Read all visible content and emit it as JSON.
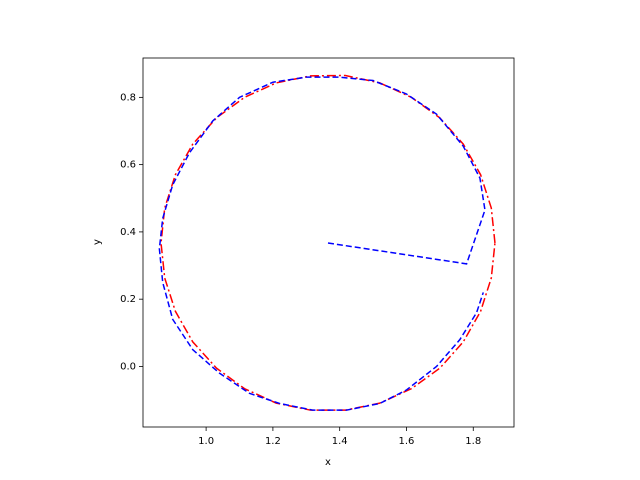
{
  "chart_data": {
    "type": "line",
    "xlabel": "x",
    "ylabel": "y",
    "xlim": [
      0.811,
      1.922
    ],
    "ylim": [
      -0.18,
      0.917
    ],
    "xticks": [
      {
        "value": 1.0,
        "label": "1.0"
      },
      1.2,
      1.4,
      1.6,
      1.8
    ],
    "yticks": [
      {
        "value": 0.0,
        "label": "0.0"
      },
      0.2,
      0.4,
      0.6,
      0.8
    ],
    "series": [
      {
        "color": "#ff0000",
        "linestyle": "dashdot",
        "x": [
          1.865,
          1.854,
          1.822,
          1.77,
          1.7,
          1.615,
          1.52,
          1.417,
          1.313,
          1.21,
          1.115,
          1.031,
          0.96,
          0.908,
          0.876,
          0.865,
          0.876,
          0.908,
          0.96,
          1.031,
          1.115,
          1.21,
          1.313,
          1.417,
          1.52,
          1.615,
          1.7,
          1.77,
          1.822,
          1.854,
          1.865
        ],
        "values": [
          0.367,
          0.471,
          0.57,
          0.661,
          0.739,
          0.8,
          0.843,
          0.865,
          0.864,
          0.843,
          0.8,
          0.739,
          0.661,
          0.57,
          0.471,
          0.367,
          0.263,
          0.164,
          0.073,
          -0.005,
          -0.066,
          -0.109,
          -0.13,
          -0.13,
          -0.109,
          -0.066,
          -0.005,
          0.073,
          0.164,
          0.263,
          0.367
        ]
      },
      {
        "color": "#0000ff",
        "linestyle": "dashed",
        "x": [
          1.365,
          1.78,
          1.835,
          1.82,
          1.77,
          1.69,
          1.6,
          1.5,
          1.4,
          1.3,
          1.2,
          1.1,
          1.02,
          0.95,
          0.9,
          0.87,
          0.86,
          0.87,
          0.9,
          0.96,
          1.04,
          1.13,
          1.22,
          1.32,
          1.42,
          1.52,
          1.6,
          1.69,
          1.76,
          1.81,
          1.83
        ],
        "values": [
          0.367,
          0.305,
          0.465,
          0.56,
          0.655,
          0.75,
          0.81,
          0.85,
          0.86,
          0.86,
          0.845,
          0.8,
          0.73,
          0.635,
          0.54,
          0.44,
          0.35,
          0.25,
          0.14,
          0.05,
          -0.02,
          -0.08,
          -0.11,
          -0.13,
          -0.13,
          -0.11,
          -0.07,
          0.0,
          0.08,
          0.16,
          0.22
        ]
      }
    ]
  }
}
